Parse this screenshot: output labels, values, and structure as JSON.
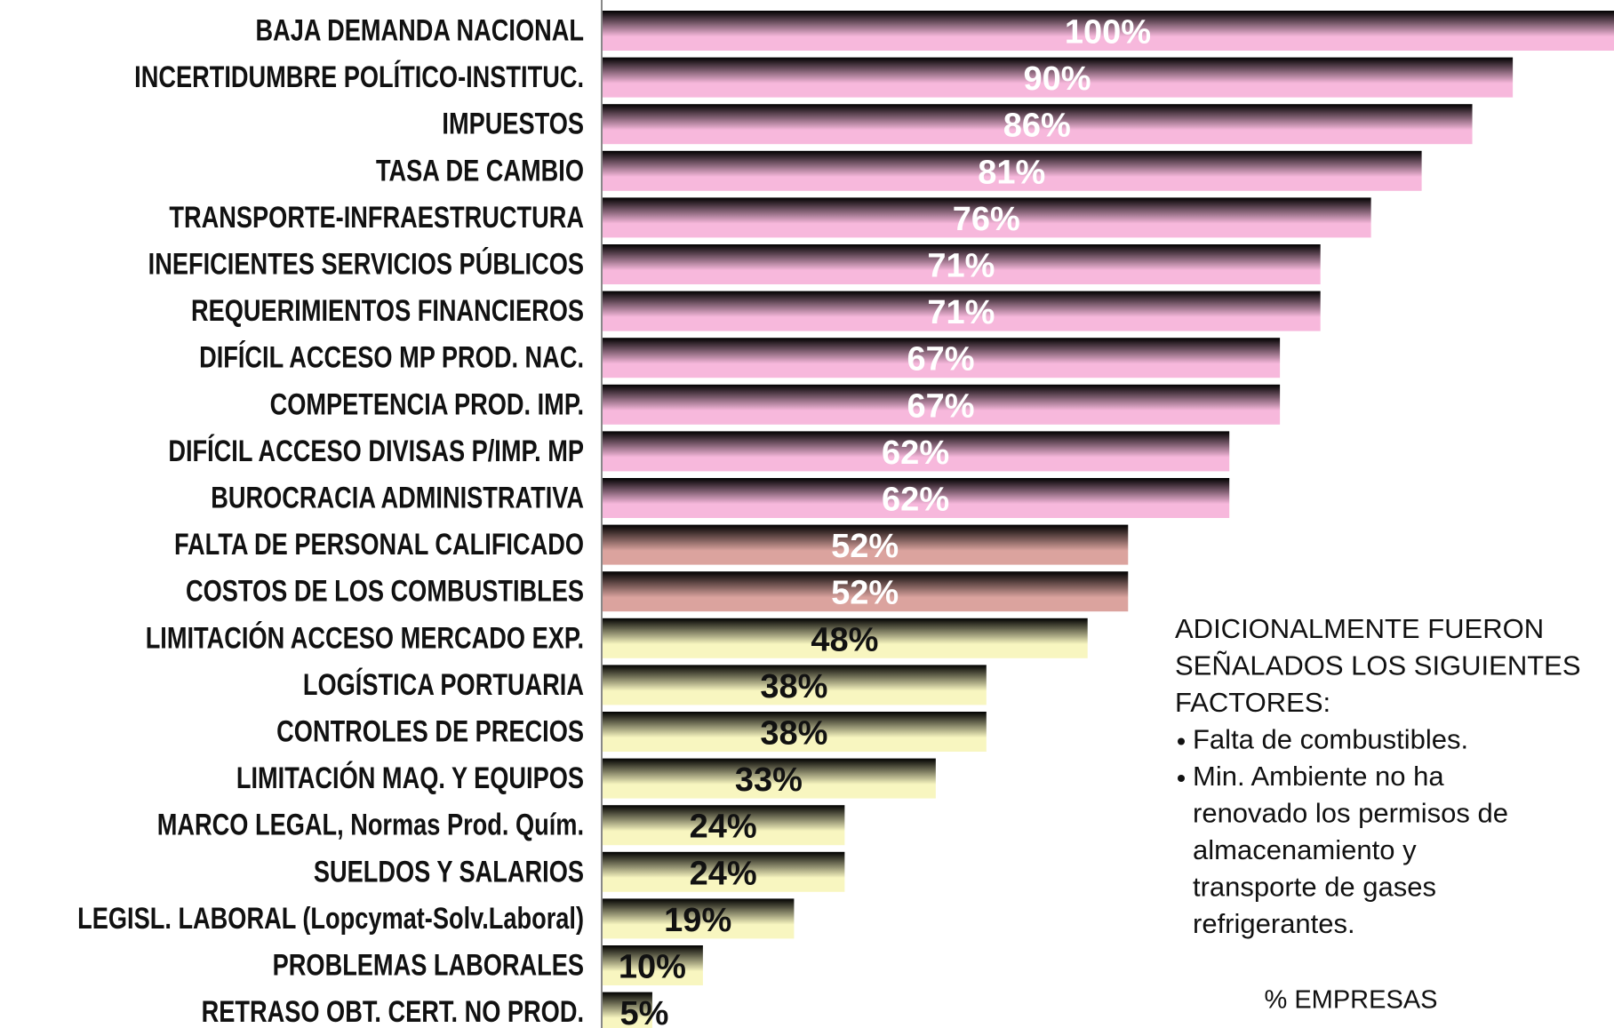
{
  "chart_data": {
    "type": "barh",
    "categories": [
      "BAJA DEMANDA NACIONAL",
      "INCERTIDUMBRE POLÍTICO-INSTITUC.",
      "IMPUESTOS",
      "TASA DE CAMBIO",
      "TRANSPORTE-INFRAESTRUCTURA",
      "INEFICIENTES SERVICIOS PÚBLICOS",
      "REQUERIMIENTOS FINANCIEROS",
      "DIFÍCIL ACCESO MP PROD. NAC.",
      "COMPETENCIA PROD. IMP.",
      "DIFÍCIL ACCESO DIVISAS P/IMP. MP",
      "BUROCRACIA ADMINISTRATIVA",
      "FALTA DE PERSONAL CALIFICADO",
      "COSTOS DE LOS COMBUSTIBLES",
      "LIMITACIÓN ACCESO MERCADO EXP.",
      "LOGÍSTICA PORTUARIA",
      "CONTROLES DE PRECIOS",
      "LIMITACIÓN MAQ. Y EQUIPOS",
      "MARCO LEGAL, Normas Prod. Quím.",
      "SUELDOS Y SALARIOS",
      "LEGISL. LABORAL (Lopcymat-Solv.Laboral)",
      "PROBLEMAS LABORALES",
      "RETRASO OBT. CERT. NO PROD."
    ],
    "values": [
      100,
      90,
      86,
      81,
      76,
      71,
      71,
      67,
      67,
      62,
      62,
      52,
      52,
      48,
      38,
      38,
      33,
      24,
      24,
      19,
      10,
      5
    ],
    "value_labels": [
      "100%",
      "90%",
      "86%",
      "81%",
      "76%",
      "71%",
      "71%",
      "67%",
      "67%",
      "62%",
      "62%",
      "52%",
      "52%",
      "48%",
      "38%",
      "38%",
      "33%",
      "24%",
      "24%",
      "19%",
      "10%",
      "5%"
    ],
    "colors": [
      "#f7b8dc",
      "#f7b8dc",
      "#f7b8dc",
      "#f7b8dc",
      "#f7b8dc",
      "#f7b8dc",
      "#f7b8dc",
      "#f7b8dc",
      "#f7b8dc",
      "#f7b8dc",
      "#f7b8dc",
      "#dba39e",
      "#dba39e",
      "#f8f6c0",
      "#f8f6c0",
      "#f8f6c0",
      "#f8f6c0",
      "#f8f6c0",
      "#f8f6c0",
      "#f8f6c0",
      "#f8f6c0",
      "#f8f6c0"
    ],
    "label_colors": [
      "#ffffff",
      "#ffffff",
      "#ffffff",
      "#ffffff",
      "#ffffff",
      "#ffffff",
      "#ffffff",
      "#ffffff",
      "#ffffff",
      "#ffffff",
      "#ffffff",
      "#ffffff",
      "#ffffff",
      "#111111",
      "#111111",
      "#111111",
      "#111111",
      "#111111",
      "#111111",
      "#111111",
      "#111111",
      "#111111"
    ],
    "xlim": [
      0,
      100
    ],
    "x_label": "% EMPRESAS",
    "annotation": {
      "heading": [
        "ADICIONALMENTE FUERON",
        "SEÑALADOS LOS SIGUIENTES",
        "FACTORES:"
      ],
      "bullets": [
        [
          "Falta de combustibles."
        ],
        [
          "Min. Ambiente no ha",
          "renovado los permisos de",
          "almacenamiento y",
          "transporte de gases",
          "refrigerantes."
        ]
      ]
    }
  }
}
